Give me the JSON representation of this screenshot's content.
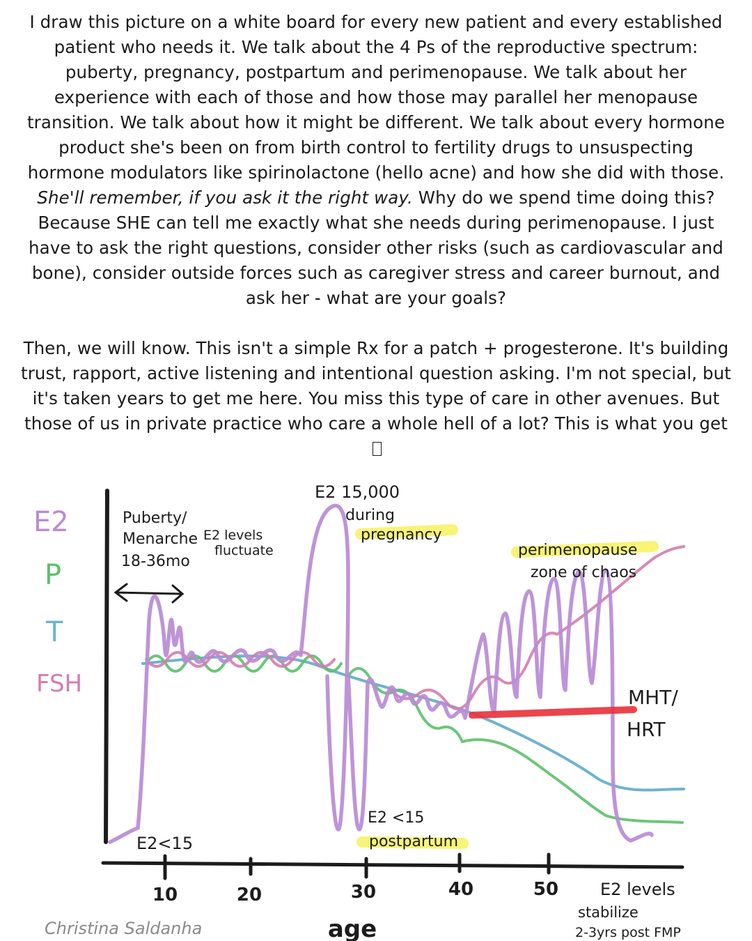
{
  "caption": {
    "p1_before": "I draw this picture on a white board for every new patient and every established patient who needs it. We talk about the 4 Ps of the reproductive spectrum: puberty, pregnancy, postpartum and perimenopause. We talk about her experience with each of those and how those may parallel her menopause transition. We talk about how it might be different. We talk about every hormone product she's been on from birth control to fertility drugs to unsuspecting hormone modulators like spirinolactone (hello acne) and how she did with those. ",
    "p1_italic": "She'll remember, if you ask it the right way.",
    "p1_after": " Why do we spend time doing this? Because SHE can tell me exactly what she needs during perimenopause. I just have to ask the right questions, consider other risks (such as cardiovascular and bone), consider outside forces such as caregiver stress and career burnout, and ask her - what are your goals?",
    "p2": "Then, we will know. This isn't a simple Rx for a patch + progesterone. It's building trust, rapport, active listening and intentional question asking. I'm not special, but it's taken years to get me here. You miss this type of care in other avenues. But those of us in private practice who care a whole hell of a lot? This is what you get"
  },
  "legend": [
    {
      "label": "E2",
      "color": "#b98bd6"
    },
    {
      "label": "P",
      "color": "#5cc06a"
    },
    {
      "label": "T",
      "color": "#6fb3cf"
    },
    {
      "label": "FSH",
      "color": "#d57bb0"
    }
  ],
  "annotations": {
    "puberty_1": "Puberty/",
    "puberty_2": "Menarche",
    "puberty_3": "18-36mo",
    "fluct_1": "E2 levels",
    "fluct_2": "fluctuate",
    "preg_1": "E2 15,000",
    "preg_2": "during",
    "preg_3": "pregnancy",
    "peri_1": "perimenopause",
    "peri_2": "zone of chaos",
    "mht_1": "MHT/",
    "mht_2": "HRT",
    "e2low": "E2<15",
    "pp_1": "E2 <15",
    "pp_2": "postpartum",
    "stab_1": "E2 levels",
    "stab_2": "stabilize",
    "stab_3": "2-3yrs post FMP"
  },
  "x_axis": {
    "label": "age",
    "ticks": [
      "10",
      "20",
      "30",
      "40",
      "50"
    ]
  },
  "signature": "Christina Saldanha",
  "colors": {
    "e2": "#b98bd6",
    "progesterone": "#5cc06a",
    "testosterone": "#6fb3cf",
    "fsh": "#d57bb0",
    "mht": "#e8313a",
    "highlight": "#f4f04a"
  }
}
